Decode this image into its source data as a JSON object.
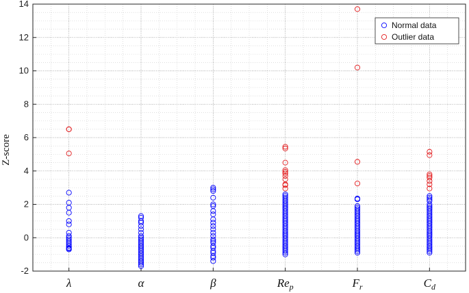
{
  "chart_data": {
    "type": "scatter",
    "ylabel": "Z-score",
    "ylim": [
      -2,
      14
    ],
    "yticks": [
      -2,
      0,
      2,
      4,
      6,
      8,
      10,
      12,
      14
    ],
    "categories": [
      {
        "id": "lambda",
        "base": "λ",
        "sub": ""
      },
      {
        "id": "alpha",
        "base": "α",
        "sub": ""
      },
      {
        "id": "beta",
        "base": "β",
        "sub": ""
      },
      {
        "id": "rep",
        "base": "Re",
        "sub": "p"
      },
      {
        "id": "fr",
        "base": "F",
        "sub": "r"
      },
      {
        "id": "cd",
        "base": "C",
        "sub": "d"
      }
    ],
    "grid": true,
    "legend_position": "top-right",
    "series": [
      {
        "name": "Normal data",
        "color": "#0000ff",
        "points_by_category": [
          [
            2.7,
            2.1,
            1.8,
            1.5,
            1.0,
            0.8,
            0.3,
            0.1,
            0.0,
            -0.1,
            -0.2,
            -0.3,
            -0.4,
            -0.5,
            -0.6,
            -0.65,
            -0.7
          ],
          [
            1.3,
            1.2,
            1.0,
            0.9,
            0.7,
            0.5,
            0.3,
            0.1,
            0.0,
            -0.1,
            -0.2,
            -0.3,
            -0.4,
            -0.5,
            -0.6,
            -0.7,
            -0.8,
            -0.9,
            -1.0,
            -1.1,
            -1.2,
            -1.3,
            -1.4,
            -1.5,
            -1.6,
            -1.7
          ],
          [
            3.0,
            2.9,
            2.8,
            2.4,
            2.0,
            1.9,
            1.6,
            1.4,
            1.1,
            0.9,
            0.7,
            0.5,
            0.3,
            0.1,
            -0.1,
            -0.2,
            -0.3,
            -0.5,
            -0.6,
            -0.8,
            -0.9,
            -1.1,
            -1.2,
            -1.4
          ],
          [
            2.6,
            2.5,
            2.4,
            2.3,
            2.2,
            2.1,
            2.0,
            1.9,
            1.8,
            1.7,
            1.6,
            1.5,
            1.4,
            1.3,
            1.2,
            1.1,
            1.0,
            0.9,
            0.8,
            0.7,
            0.6,
            0.5,
            0.4,
            0.3,
            0.2,
            0.1,
            0.0,
            -0.1,
            -0.2,
            -0.3,
            -0.4,
            -0.5,
            -0.6,
            -0.7,
            -0.8,
            -0.9,
            -1.0
          ],
          [
            2.35,
            2.3,
            1.9,
            1.8,
            1.7,
            1.6,
            1.5,
            1.4,
            1.3,
            1.2,
            1.1,
            1.0,
            0.9,
            0.8,
            0.7,
            0.6,
            0.5,
            0.4,
            0.3,
            0.2,
            0.1,
            0.0,
            -0.1,
            -0.2,
            -0.3,
            -0.4,
            -0.5,
            -0.6,
            -0.7,
            -0.8,
            -0.9
          ],
          [
            2.5,
            2.4,
            2.3,
            2.2,
            2.0,
            1.9,
            1.8,
            1.7,
            1.6,
            1.5,
            1.4,
            1.3,
            1.2,
            1.1,
            1.0,
            0.9,
            0.8,
            0.7,
            0.6,
            0.5,
            0.4,
            0.3,
            0.2,
            0.1,
            0.0,
            -0.1,
            -0.2,
            -0.3,
            -0.4,
            -0.5,
            -0.6,
            -0.7,
            -0.8,
            -0.9
          ]
        ]
      },
      {
        "name": "Outlier data",
        "color": "#e31a1c",
        "points_by_category": [
          [
            6.5,
            6.5,
            5.05
          ],
          [],
          [],
          [
            5.45,
            5.35,
            4.5,
            4.05,
            3.95,
            3.85,
            3.7,
            3.5,
            3.2,
            3.15,
            2.95
          ],
          [
            13.7,
            10.2,
            4.55,
            3.25
          ],
          [
            5.15,
            4.95,
            3.8,
            3.7,
            3.6,
            3.4,
            3.2,
            2.95
          ]
        ]
      }
    ]
  }
}
